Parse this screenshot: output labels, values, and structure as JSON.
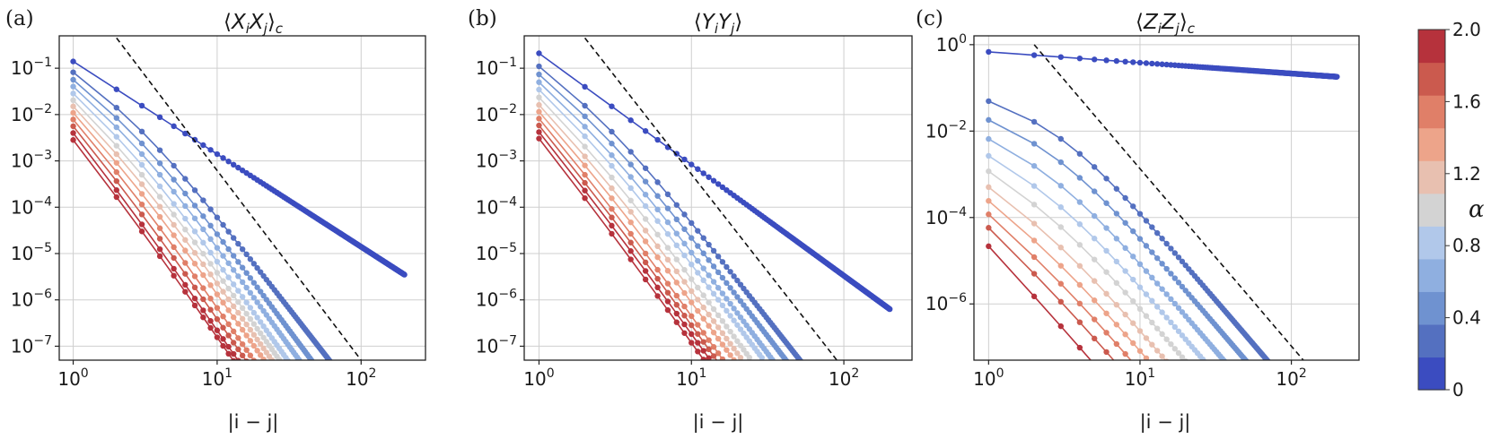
{
  "chart_data": [
    {
      "type": "line",
      "panel_label": "(a)",
      "title": "⟨XiXj⟩c",
      "xlabel": "|i − j|",
      "xscale": "log",
      "yscale": "log",
      "xlim": [
        0.8,
        280
      ],
      "ylim": [
        5e-08,
        0.5
      ],
      "xticks": [
        1,
        10,
        100
      ],
      "xtick_labels": [
        "10^0",
        "10^1",
        "10^2"
      ],
      "yticks": [
        1e-07,
        1e-06,
        1e-05,
        0.0001,
        0.001,
        0.01,
        0.1
      ],
      "ytick_labels": [
        "10^-7",
        "10^-6",
        "10^-5",
        "10^-4",
        "10^-3",
        "10^-2",
        "10^-1"
      ],
      "grid": true,
      "reference_line": {
        "style": "dashed",
        "points": [
          [
            2,
            0.45
          ],
          [
            100,
            5e-08
          ]
        ]
      },
      "series": [
        {
          "alpha": 0.0,
          "a0": 0.14,
          "p": 2.0,
          "q": 2.0,
          "max": 200
        },
        {
          "alpha": 0.2,
          "a0": 0.09,
          "p": 2.2,
          "q": 4.0,
          "max": 80
        },
        {
          "alpha": 0.4,
          "a0": 0.062,
          "p": 2.4,
          "q": 4.2,
          "max": 55
        },
        {
          "alpha": 0.6,
          "a0": 0.044,
          "p": 2.6,
          "q": 4.3,
          "max": 42
        },
        {
          "alpha": 0.8,
          "a0": 0.031,
          "p": 2.8,
          "q": 4.4,
          "max": 34
        },
        {
          "alpha": 1.0,
          "a0": 0.022,
          "p": 3.0,
          "q": 4.4,
          "max": 28
        },
        {
          "alpha": 1.2,
          "a0": 0.016,
          "p": 3.2,
          "q": 4.4,
          "max": 24
        },
        {
          "alpha": 1.4,
          "a0": 0.0115,
          "p": 3.4,
          "q": 4.4,
          "max": 21
        },
        {
          "alpha": 1.6,
          "a0": 0.0082,
          "p": 3.6,
          "q": 4.5,
          "max": 19
        },
        {
          "alpha": 1.8,
          "a0": 0.0058,
          "p": 3.8,
          "q": 4.5,
          "max": 18
        },
        {
          "alpha": 2.0,
          "a0": 0.0041,
          "p": 4.0,
          "q": 4.5,
          "max": 17
        },
        {
          "alpha": 2.0,
          "a0": 0.0029,
          "p": 4.0,
          "q": 4.5,
          "max": 16
        }
      ]
    },
    {
      "type": "line",
      "panel_label": "(b)",
      "title": "⟨YiYj⟩",
      "xlabel": "|i − j|",
      "xscale": "log",
      "yscale": "log",
      "xlim": [
        0.8,
        280
      ],
      "ylim": [
        5e-08,
        0.5
      ],
      "xticks": [
        1,
        10,
        100
      ],
      "xtick_labels": [
        "10^0",
        "10^1",
        "10^2"
      ],
      "yticks": [
        1e-07,
        1e-06,
        1e-05,
        0.0001,
        0.001,
        0.01,
        0.1
      ],
      "ytick_labels": [
        "10^-7",
        "10^-6",
        "10^-5",
        "10^-4",
        "10^-3",
        "10^-2",
        "10^-1"
      ],
      "grid": true,
      "reference_line": {
        "style": "dashed",
        "points": [
          [
            2,
            0.45
          ],
          [
            90,
            5e-08
          ]
        ]
      },
      "series": [
        {
          "alpha": 0.0,
          "a0": 0.21,
          "p": 2.4,
          "q": 2.4,
          "max": 200
        },
        {
          "alpha": 0.2,
          "a0": 0.12,
          "p": 2.5,
          "q": 4.2,
          "max": 70
        },
        {
          "alpha": 0.4,
          "a0": 0.08,
          "p": 2.7,
          "q": 4.3,
          "max": 48
        },
        {
          "alpha": 0.6,
          "a0": 0.054,
          "p": 2.9,
          "q": 4.4,
          "max": 36
        },
        {
          "alpha": 0.8,
          "a0": 0.037,
          "p": 3.1,
          "q": 4.4,
          "max": 29
        },
        {
          "alpha": 1.0,
          "a0": 0.025,
          "p": 3.3,
          "q": 4.5,
          "max": 24
        },
        {
          "alpha": 1.2,
          "a0": 0.017,
          "p": 3.5,
          "q": 4.5,
          "max": 21
        },
        {
          "alpha": 1.4,
          "a0": 0.012,
          "p": 3.7,
          "q": 4.5,
          "max": 19
        },
        {
          "alpha": 1.6,
          "a0": 0.0085,
          "p": 3.9,
          "q": 4.6,
          "max": 17
        },
        {
          "alpha": 1.8,
          "a0": 0.006,
          "p": 4.0,
          "q": 4.6,
          "max": 16
        },
        {
          "alpha": 2.0,
          "a0": 0.0043,
          "p": 4.1,
          "q": 4.6,
          "max": 15
        },
        {
          "alpha": 2.0,
          "a0": 0.0031,
          "p": 4.2,
          "q": 4.6,
          "max": 15
        }
      ]
    },
    {
      "type": "line",
      "panel_label": "(c)",
      "title": "⟨ZiZj⟩c",
      "xlabel": "|i − j|",
      "xscale": "log",
      "yscale": "log",
      "xlim": [
        0.8,
        280
      ],
      "ylim": [
        5e-08,
        1.6
      ],
      "xticks": [
        1,
        10,
        100
      ],
      "xtick_labels": [
        "10^0",
        "10^1",
        "10^2"
      ],
      "yticks": [
        1e-06,
        0.0001,
        0.01,
        1
      ],
      "ytick_labels": [
        "10^-6",
        "10^-4",
        "10^-2",
        "10^0"
      ],
      "grid": true,
      "reference_line": {
        "style": "dashed",
        "points": [
          [
            2,
            1.0
          ],
          [
            120,
            5e-08
          ]
        ]
      },
      "series": [
        {
          "alpha": 0.0,
          "a0": 0.68,
          "p": 0.25,
          "q": 0.25,
          "max": 200
        },
        {
          "alpha": 0.2,
          "a0": 0.058,
          "p": 1.0,
          "q": 4.1,
          "max": 120
        },
        {
          "alpha": 0.4,
          "a0": 0.021,
          "p": 1.3,
          "q": 4.1,
          "max": 70
        },
        {
          "alpha": 0.6,
          "a0": 0.0075,
          "p": 1.6,
          "q": 4.1,
          "max": 45
        },
        {
          "alpha": 0.8,
          "a0": 0.003,
          "p": 1.9,
          "q": 4.1,
          "max": 30
        },
        {
          "alpha": 1.0,
          "a0": 0.0013,
          "p": 2.2,
          "q": 4.1,
          "max": 22
        },
        {
          "alpha": 1.2,
          "a0": 0.00055,
          "p": 2.5,
          "q": 4.1,
          "max": 16
        },
        {
          "alpha": 1.4,
          "a0": 0.00026,
          "p": 2.8,
          "q": 4.1,
          "max": 13
        },
        {
          "alpha": 1.6,
          "a0": 0.000125,
          "p": 3.1,
          "q": 4.1,
          "max": 10
        },
        {
          "alpha": 1.8,
          "a0": 6e-05,
          "p": 3.4,
          "q": 4.1,
          "max": 8
        },
        {
          "alpha": 2.0,
          "a0": 2.2e-05,
          "p": 3.8,
          "q": 4.1,
          "max": 6
        }
      ]
    }
  ],
  "colorbar": {
    "label": "α",
    "vmin": 0,
    "vmax": 2.0,
    "ticks": [
      0,
      0.4,
      0.8,
      1.2,
      1.6,
      2.0
    ],
    "tick_labels": [
      "0",
      "0.4",
      "0.8",
      "1.2",
      "1.6",
      "2.0"
    ],
    "colors": [
      "#3b4cc0",
      "#5470c0",
      "#6f92d0",
      "#8fafe0",
      "#b1c8ea",
      "#d3d3d3",
      "#e8c0b0",
      "#eda48a",
      "#e07f68",
      "#cb5a4e",
      "#b6323c"
    ]
  }
}
